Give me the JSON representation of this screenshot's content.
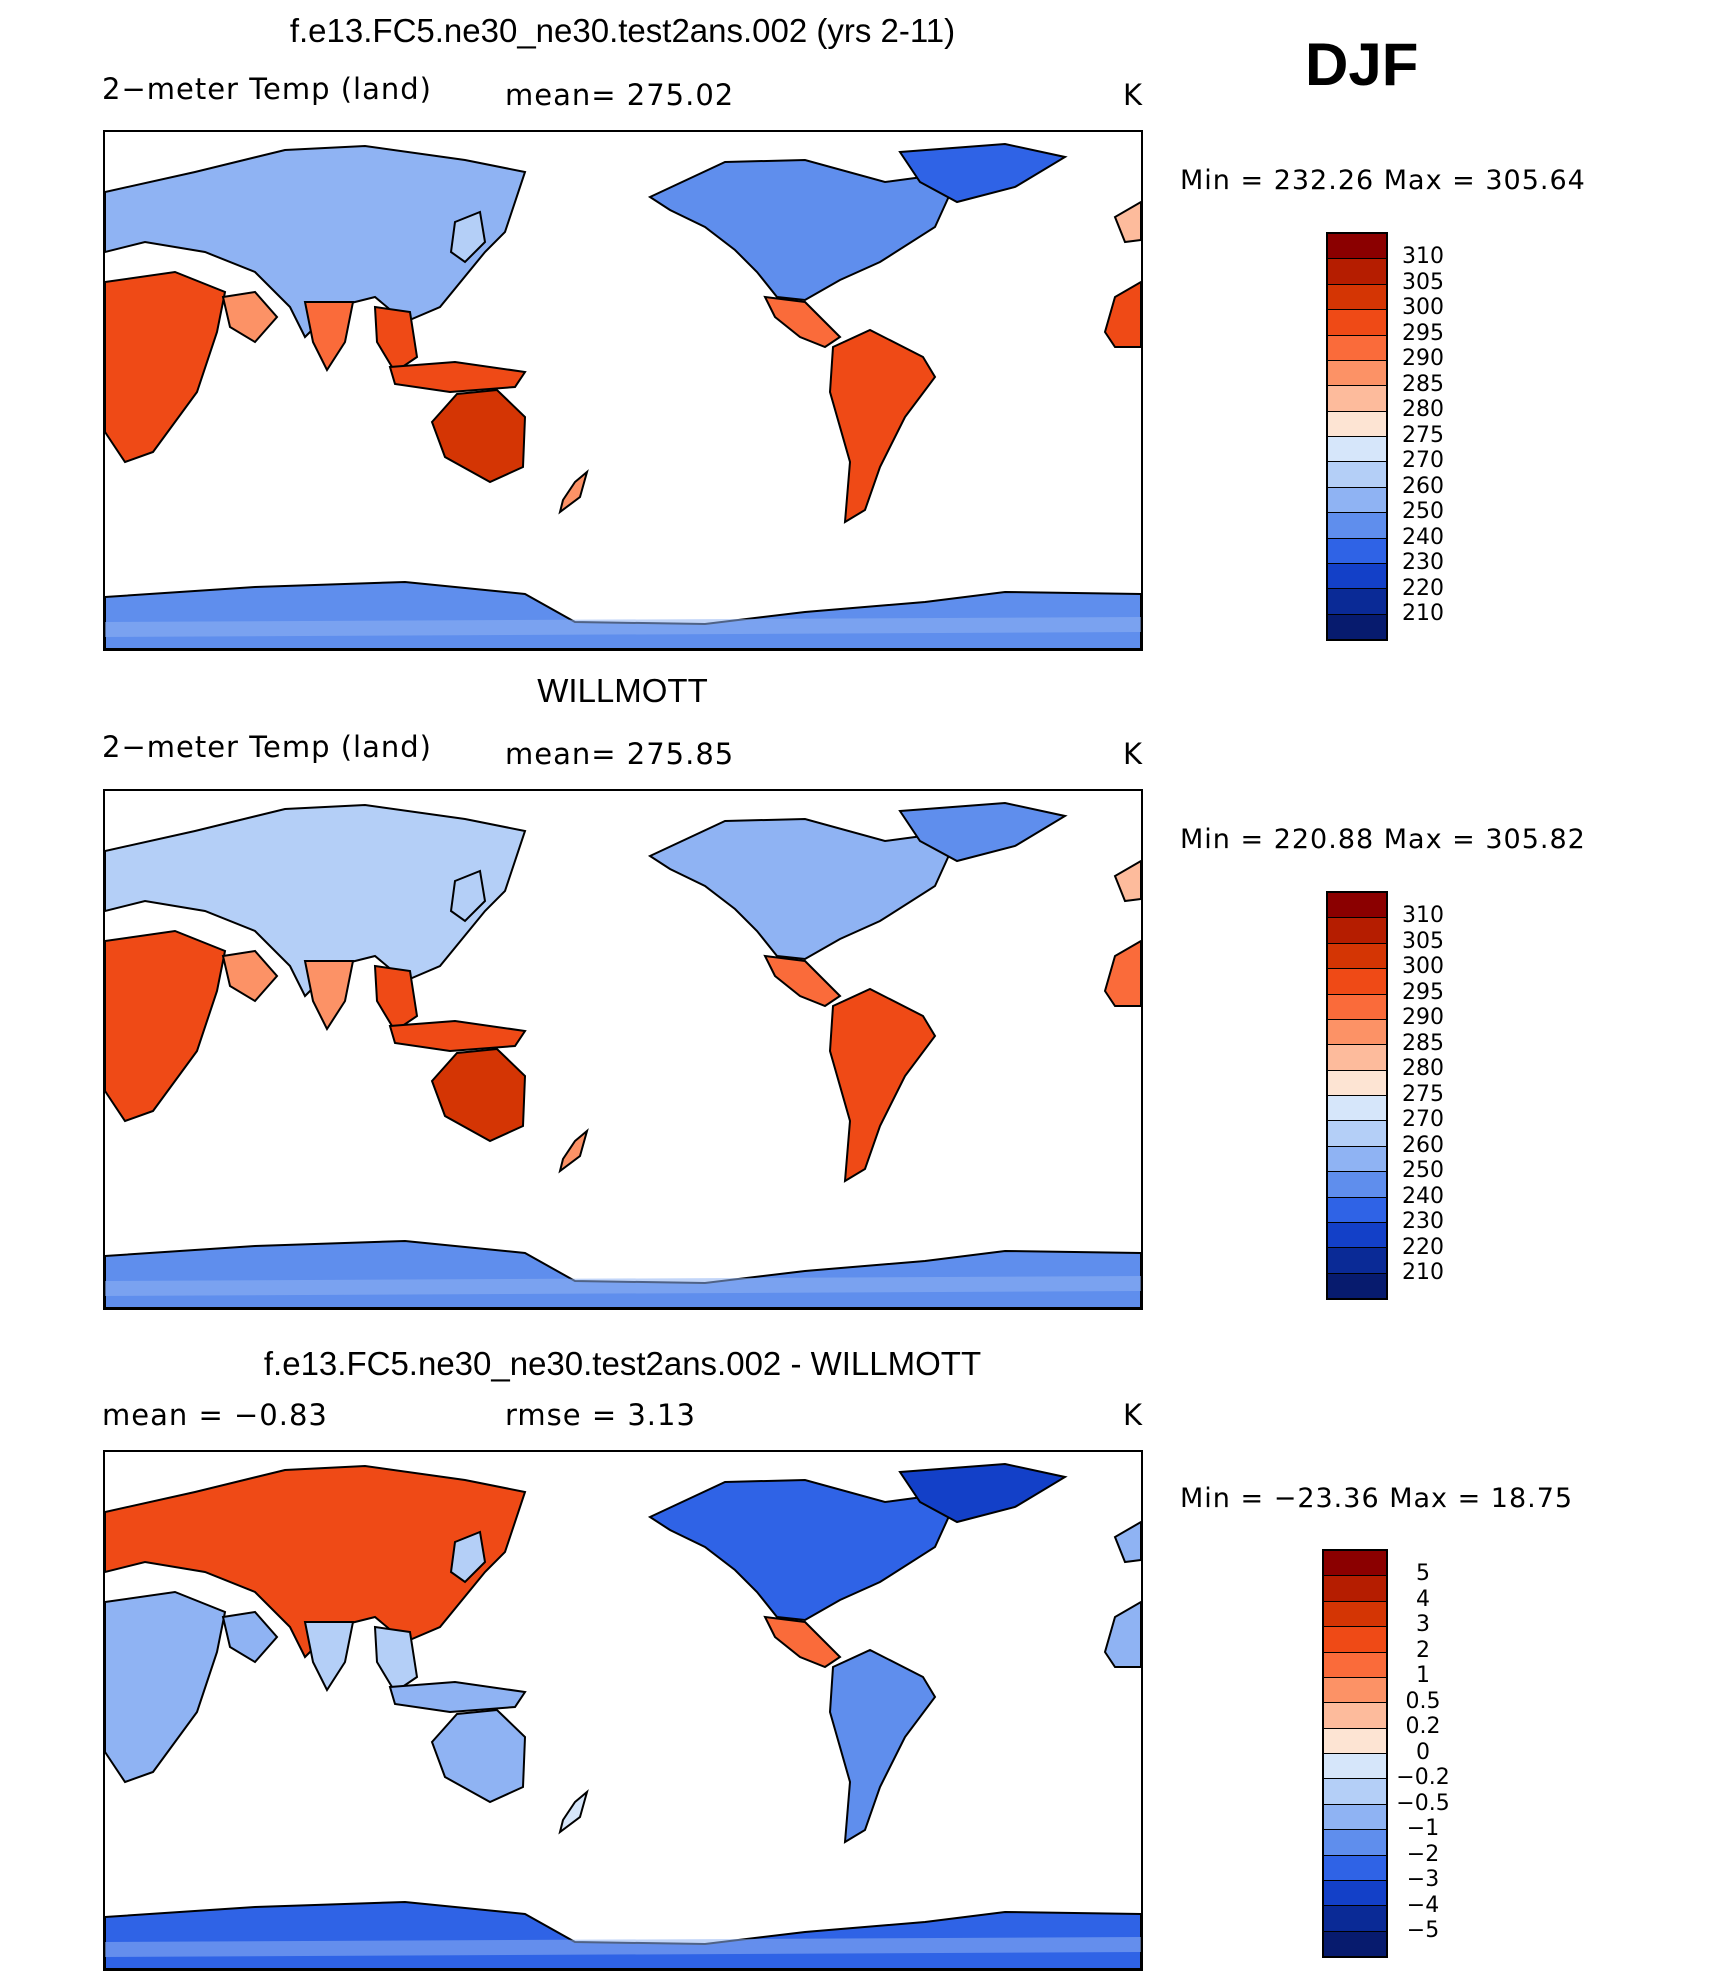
{
  "season": "DJF",
  "chart_data": [
    {
      "type": "heatmap",
      "title": "f.e13.FC5.ne30_ne30.test2ans.002 (yrs 2-11)",
      "variable": "2−meter Temp (land)",
      "stat_text": "mean=  275.02",
      "stats": {
        "mean": 275.02,
        "min": 232.26,
        "max": 305.64
      },
      "units": "K",
      "minmax_text": "Min  =  232.26  Max  =  305.64",
      "colorbar": {
        "levels": [
          "310",
          "305",
          "300",
          "295",
          "290",
          "285",
          "280",
          "275",
          "270",
          "260",
          "250",
          "240",
          "230",
          "220",
          "210"
        ],
        "colors": [
          "#8b0000",
          "#b51d00",
          "#d43504",
          "#ef4a16",
          "#fa6b3a",
          "#fc9266",
          "#fdbb9c",
          "#fde4d3",
          "#d6e6fa",
          "#b4cff7",
          "#8fb3f3",
          "#5f8eed",
          "#2f63e6",
          "#1340c8",
          "#0a2a96",
          "#071b6e"
        ]
      },
      "projection": "cylindrical equidistant, centered on 180° longitude"
    },
    {
      "type": "heatmap",
      "title": "WILLMOTT",
      "variable": "2−meter Temp (land)",
      "stat_text": "mean=  275.85",
      "stats": {
        "mean": 275.85,
        "min": 220.88,
        "max": 305.82
      },
      "units": "K",
      "minmax_text": "Min  =  220.88  Max  =  305.82",
      "colorbar": {
        "levels": [
          "310",
          "305",
          "300",
          "295",
          "290",
          "285",
          "280",
          "275",
          "270",
          "260",
          "250",
          "240",
          "230",
          "220",
          "210"
        ],
        "colors": [
          "#8b0000",
          "#b51d00",
          "#d43504",
          "#ef4a16",
          "#fa6b3a",
          "#fc9266",
          "#fdbb9c",
          "#fde4d3",
          "#d6e6fa",
          "#b4cff7",
          "#8fb3f3",
          "#5f8eed",
          "#2f63e6",
          "#1340c8",
          "#0a2a96",
          "#071b6e"
        ]
      },
      "projection": "cylindrical equidistant, centered on 180° longitude"
    },
    {
      "type": "heatmap",
      "title": "f.e13.FC5.ne30_ne30.test2ans.002 - WILLMOTT",
      "stat_left_text": "mean =     −0.83",
      "stat_right_text": "rmse =      3.13",
      "stats": {
        "mean": -0.83,
        "rmse": 3.13,
        "min": -23.36,
        "max": 18.75
      },
      "units": "K",
      "minmax_text": "Min  =  −23.36  Max  =    18.75",
      "colorbar": {
        "levels": [
          "5",
          "4",
          "3",
          "2",
          "1",
          "0.5",
          "0.2",
          "0",
          "−0.2",
          "−0.5",
          "−1",
          "−2",
          "−3",
          "−4",
          "−5"
        ],
        "colors": [
          "#8b0000",
          "#b51d00",
          "#d43504",
          "#ef4a16",
          "#fa6b3a",
          "#fc9266",
          "#fdbb9c",
          "#fde4d3",
          "#d6e6fa",
          "#b4cff7",
          "#8fb3f3",
          "#5f8eed",
          "#2f63e6",
          "#1340c8",
          "#0a2a96",
          "#071b6e"
        ]
      },
      "projection": "cylindrical equidistant, centered on 180° longitude"
    }
  ]
}
